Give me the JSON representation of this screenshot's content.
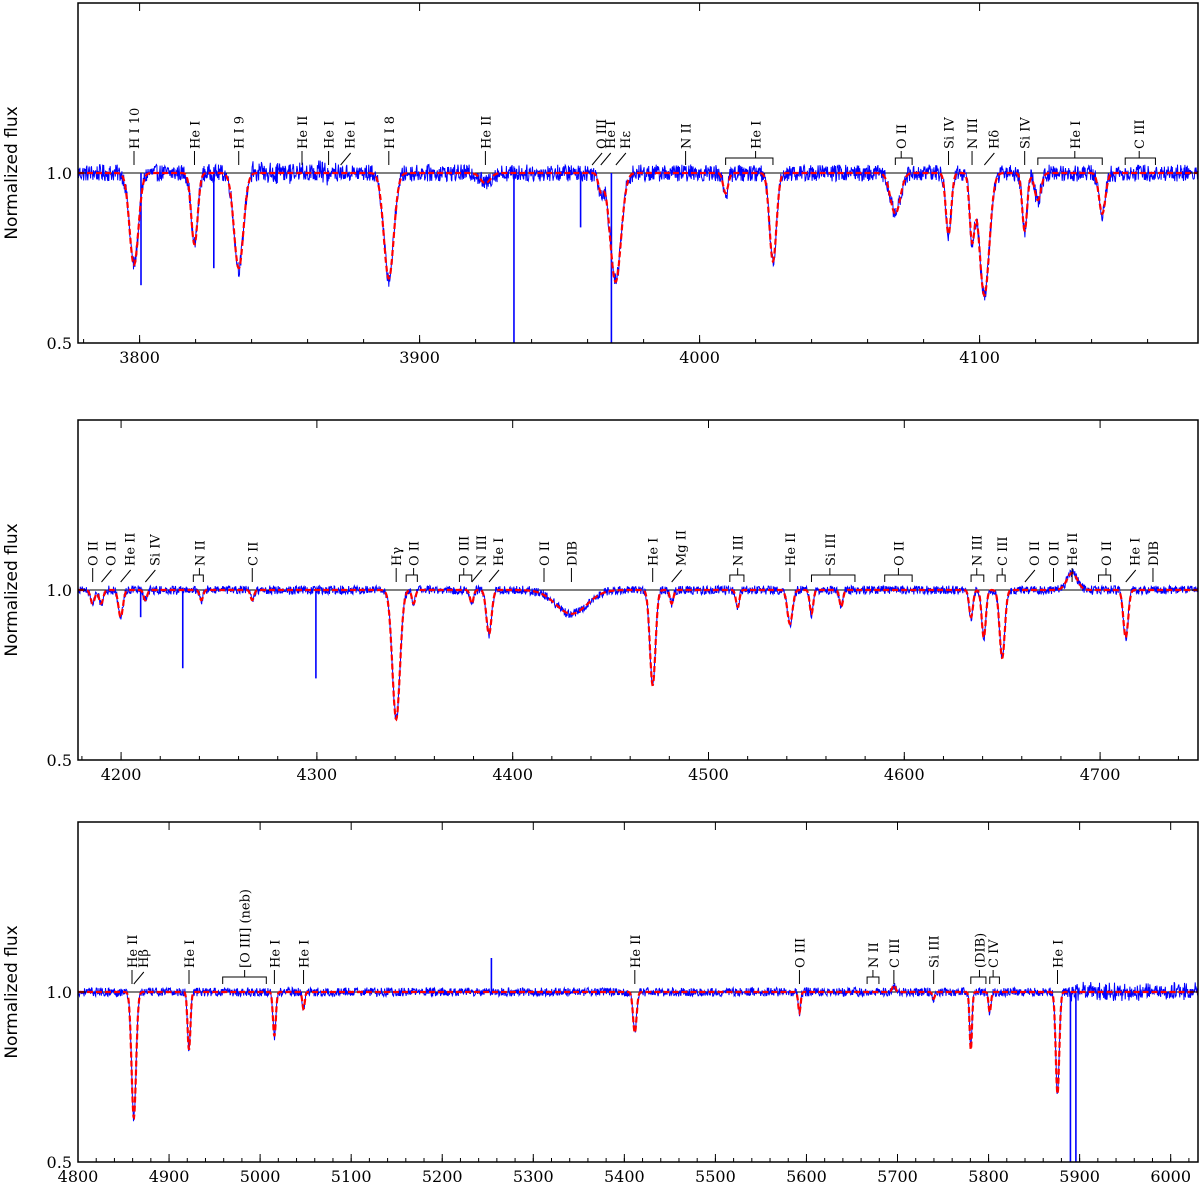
{
  "chart_data": [
    {
      "type": "line",
      "ylabel": "Normalized flux",
      "xlim": [
        3778,
        4178
      ],
      "ylim": [
        0.5,
        1.5
      ],
      "x_ticks": [
        3800,
        3900,
        4000,
        4100
      ],
      "y_ticks": [
        0.5,
        1.0
      ],
      "continuum": 1.0,
      "series": [],
      "absorption_lines": [
        {
          "center": 3798,
          "depth": 0.27,
          "width": 1.8
        },
        {
          "center": 3819.6,
          "depth": 0.21,
          "width": 1.3
        },
        {
          "center": 3835.4,
          "depth": 0.28,
          "width": 1.9
        },
        {
          "center": 3889,
          "depth": 0.31,
          "width": 2.0
        },
        {
          "center": 3923.5,
          "depth": 0.03,
          "width": 2.0
        },
        {
          "center": 3964.7,
          "depth": 0.05,
          "width": 1.0
        },
        {
          "center": 3970,
          "depth": 0.32,
          "width": 2.2
        },
        {
          "center": 4009.3,
          "depth": 0.06,
          "width": 1.0
        },
        {
          "center": 4026.2,
          "depth": 0.26,
          "width": 1.4
        },
        {
          "center": 4069.9,
          "depth": 0.12,
          "width": 2.0
        },
        {
          "center": 4088.9,
          "depth": 0.18,
          "width": 1.1
        },
        {
          "center": 4097.3,
          "depth": 0.19,
          "width": 1.0
        },
        {
          "center": 4101.7,
          "depth": 0.36,
          "width": 2.0
        },
        {
          "center": 4116.1,
          "depth": 0.17,
          "width": 1.0
        },
        {
          "center": 4120.8,
          "depth": 0.08,
          "width": 1.3
        },
        {
          "center": 4143.8,
          "depth": 0.12,
          "width": 1.3
        }
      ],
      "spikes": [
        {
          "x": 3800.5,
          "y": 0.67
        },
        {
          "x": 3826.5,
          "y": 0.72
        },
        {
          "x": 3933.7,
          "y": 0.5
        },
        {
          "x": 3968.5,
          "y": 0.5
        },
        {
          "x": 3957.5,
          "y": 0.84
        }
      ],
      "annotations": [
        {
          "text": "H I 10",
          "x": 3798.0
        },
        {
          "text": "He I",
          "x": 3819.6
        },
        {
          "text": "H I 9",
          "x": 3835.4
        },
        {
          "text": "He II",
          "x": 3858.0
        },
        {
          "text": "He I",
          "x": 3867.5
        },
        {
          "text": "He I",
          "x": 3871.8,
          "tilt": true
        },
        {
          "text": "H I 8",
          "x": 3889.0
        },
        {
          "text": "He II",
          "x": 3923.5
        },
        {
          "text": "O III",
          "x": 3961.6,
          "tilt": true
        },
        {
          "text": "He I",
          "x": 3964.7,
          "tilt": true
        },
        {
          "text": "Hε",
          "x": 3970.1,
          "tilt": true
        },
        {
          "text": "N II",
          "x": 3995.0
        },
        {
          "text": "He I",
          "x": 4020.0,
          "bracket": [
            4009.3,
            4026.2
          ]
        },
        {
          "text": "O II",
          "x": 4072.0,
          "bracket": [
            4069.9,
            4075.9
          ]
        },
        {
          "text": "Si IV",
          "x": 4088.9
        },
        {
          "text": "N III",
          "x": 4097.3
        },
        {
          "text": "Hδ",
          "x": 4101.7,
          "tilt": true
        },
        {
          "text": "Si IV",
          "x": 4116.1
        },
        {
          "text": "He I",
          "x": 4134.0,
          "bracket": [
            4120.8,
            4143.8
          ]
        },
        {
          "text": "C III",
          "x": 4157.0,
          "bracket": [
            4152.0,
            4162.8
          ]
        }
      ]
    },
    {
      "type": "line",
      "ylabel": "Normalized flux",
      "xlim": [
        4178,
        4750
      ],
      "ylim": [
        0.5,
        1.5
      ],
      "x_ticks": [
        4200,
        4300,
        4400,
        4500,
        4600,
        4700
      ],
      "y_ticks": [
        0.5,
        1.0
      ],
      "continuum": 1.0,
      "series": [],
      "absorption_lines": [
        {
          "center": 4185.5,
          "depth": 0.04,
          "width": 1.2
        },
        {
          "center": 4189.8,
          "depth": 0.04,
          "width": 1.2
        },
        {
          "center": 4199.8,
          "depth": 0.08,
          "width": 1.3
        },
        {
          "center": 4212.4,
          "depth": 0.03,
          "width": 1.0
        },
        {
          "center": 4241.0,
          "depth": 0.03,
          "width": 1.0
        },
        {
          "center": 4267.0,
          "depth": 0.03,
          "width": 1.0
        },
        {
          "center": 4340.5,
          "depth": 0.38,
          "width": 2.2
        },
        {
          "center": 4349.4,
          "depth": 0.04,
          "width": 1.0
        },
        {
          "center": 4379.1,
          "depth": 0.04,
          "width": 1.0
        },
        {
          "center": 4387.9,
          "depth": 0.13,
          "width": 1.5
        },
        {
          "center": 4430.0,
          "depth": 0.07,
          "width": 9.0
        },
        {
          "center": 4471.5,
          "depth": 0.28,
          "width": 1.6
        },
        {
          "center": 4481.2,
          "depth": 0.04,
          "width": 1.0
        },
        {
          "center": 4514.9,
          "depth": 0.05,
          "width": 1.0
        },
        {
          "center": 4541.6,
          "depth": 0.1,
          "width": 1.5
        },
        {
          "center": 4552.6,
          "depth": 0.07,
          "width": 1.0
        },
        {
          "center": 4567.8,
          "depth": 0.05,
          "width": 1.0
        },
        {
          "center": 4634.1,
          "depth": 0.08,
          "width": 1.1
        },
        {
          "center": 4640.6,
          "depth": 0.14,
          "width": 1.2
        },
        {
          "center": 4650.0,
          "depth": 0.2,
          "width": 1.5
        },
        {
          "center": 4685.7,
          "depth": -0.05,
          "width": 3.0
        },
        {
          "center": 4713.1,
          "depth": 0.14,
          "width": 1.4
        }
      ],
      "spikes": [
        {
          "x": 4210.0,
          "y": 0.92
        },
        {
          "x": 4231.5,
          "y": 0.77
        },
        {
          "x": 4299.5,
          "y": 0.74
        }
      ],
      "annotations": [
        {
          "text": "O II",
          "x": 4185.5
        },
        {
          "text": "O II",
          "x": 4190.0,
          "tilt": true
        },
        {
          "text": "He II",
          "x": 4199.8,
          "tilt": true
        },
        {
          "text": "Si IV",
          "x": 4212.4,
          "tilt": true
        },
        {
          "text": "N II",
          "x": 4240.0,
          "bracket": [
            4236.9,
            4242.0
          ]
        },
        {
          "text": "C II",
          "x": 4267.0
        },
        {
          "text": "Hγ",
          "x": 4340.5
        },
        {
          "text": "O II",
          "x": 4349.4,
          "bracket": [
            4345.6,
            4351.3
          ]
        },
        {
          "text": "O III",
          "x": 4375.0,
          "bracket": [
            4372.8,
            4379.1
          ]
        },
        {
          "text": "N III",
          "x": 4379.1,
          "tilt": true
        },
        {
          "text": "He I",
          "x": 4387.9,
          "tilt": true
        },
        {
          "text": "O II",
          "x": 4416.0
        },
        {
          "text": "DIB",
          "x": 4430.0
        },
        {
          "text": "He I",
          "x": 4471.5
        },
        {
          "text": "Mg II",
          "x": 4481.2,
          "tilt": true
        },
        {
          "text": "N III",
          "x": 4514.9,
          "bracket": [
            4510.9,
            4518.1
          ]
        },
        {
          "text": "He II",
          "x": 4541.6
        },
        {
          "text": "Si III",
          "x": 4562.0,
          "bracket": [
            4552.6,
            4574.8
          ]
        },
        {
          "text": "O II",
          "x": 4597.0,
          "bracket": [
            4590.0,
            4604.0
          ]
        },
        {
          "text": "N III",
          "x": 4637.0,
          "bracket": [
            4634.1,
            4640.6
          ]
        },
        {
          "text": "C III",
          "x": 4650.0,
          "bracket": [
            4647.4,
            4651.5
          ]
        },
        {
          "text": "O II",
          "x": 4661.6,
          "tilt": true
        },
        {
          "text": "O II",
          "x": 4676.2
        },
        {
          "text": "He II",
          "x": 4685.7
        },
        {
          "text": "O II",
          "x": 4703.0,
          "bracket": [
            4699.2,
            4705.4
          ]
        },
        {
          "text": "He I",
          "x": 4713.1,
          "tilt": true
        },
        {
          "text": "DIB",
          "x": 4727.0
        }
      ]
    },
    {
      "type": "line",
      "ylabel": "Normalized flux",
      "xlim": [
        4800,
        6030
      ],
      "ylim": [
        0.5,
        1.5
      ],
      "x_ticks": [
        4800,
        4900,
        5000,
        5100,
        5200,
        5300,
        5400,
        5500,
        5600,
        5700,
        5800,
        5900,
        6000
      ],
      "y_ticks": [
        0.5,
        1.0
      ],
      "continuum": 1.0,
      "series": [],
      "absorption_lines": [
        {
          "center": 4861.3,
          "depth": 0.37,
          "width": 2.8
        },
        {
          "center": 4921.9,
          "depth": 0.17,
          "width": 1.8
        },
        {
          "center": 5015.7,
          "depth": 0.13,
          "width": 1.8
        },
        {
          "center": 5047.7,
          "depth": 0.05,
          "width": 1.5
        },
        {
          "center": 5411.5,
          "depth": 0.12,
          "width": 2.2
        },
        {
          "center": 5592.3,
          "depth": 0.06,
          "width": 1.5
        },
        {
          "center": 5696.0,
          "depth": -0.02,
          "width": 2.0
        },
        {
          "center": 5739.7,
          "depth": 0.02,
          "width": 1.5
        },
        {
          "center": 5780.5,
          "depth": 0.17,
          "width": 1.5
        },
        {
          "center": 5801.3,
          "depth": 0.06,
          "width": 1.5
        },
        {
          "center": 5875.7,
          "depth": 0.3,
          "width": 2.2
        }
      ],
      "spikes": [
        {
          "x": 5254.0,
          "y": 1.1
        },
        {
          "x": 5889.9,
          "y": 0.5
        },
        {
          "x": 5895.9,
          "y": 0.5
        }
      ],
      "annotations": [
        {
          "text": "He II",
          "x": 4859.3
        },
        {
          "text": "Hβ",
          "x": 4861.3,
          "tilt": true
        },
        {
          "text": "He I",
          "x": 4921.9
        },
        {
          "text": "[O III] (neb)",
          "x": 4983.0,
          "bracket": [
            4958.9,
            5006.8
          ]
        },
        {
          "text": "He I",
          "x": 5015.7
        },
        {
          "text": "He I",
          "x": 5047.7
        },
        {
          "text": "He II",
          "x": 5411.5
        },
        {
          "text": "O III",
          "x": 5592.3
        },
        {
          "text": "N II",
          "x": 5673.0,
          "bracket": [
            5666.6,
            5679.6
          ]
        },
        {
          "text": "C III",
          "x": 5696.0
        },
        {
          "text": "Si III",
          "x": 5739.7
        },
        {
          "text": "(DIB)",
          "x": 5790.0,
          "bracket": [
            5780.5,
            5797.1
          ]
        },
        {
          "text": "C IV",
          "x": 5805.0,
          "bracket": [
            5801.3,
            5811.9
          ]
        },
        {
          "text": "He I",
          "x": 5875.7
        }
      ]
    }
  ],
  "colors": {
    "observed": "#0000ff",
    "model": "#ff0000",
    "continuum": "#000000",
    "frame": "#000000"
  }
}
